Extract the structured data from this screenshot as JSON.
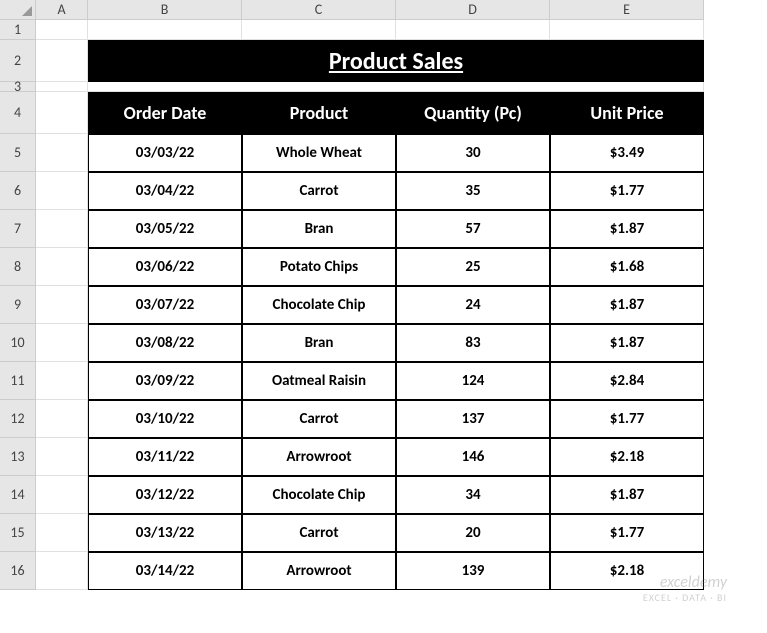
{
  "columns": [
    "A",
    "B",
    "C",
    "D",
    "E"
  ],
  "rows_labels": [
    "1",
    "2",
    "3",
    "4",
    "5",
    "6",
    "7",
    "8",
    "9",
    "10",
    "11",
    "12",
    "13",
    "14",
    "15",
    "16"
  ],
  "title": "Product Sales",
  "headers": {
    "order_date": "Order Date",
    "product": "Product",
    "quantity": "Quantity (Pc)",
    "unit_price": "Unit Price"
  },
  "data": [
    {
      "date": "03/03/22",
      "product": "Whole Wheat",
      "qty": "30",
      "price": "$3.49"
    },
    {
      "date": "03/04/22",
      "product": "Carrot",
      "qty": "35",
      "price": "$1.77"
    },
    {
      "date": "03/05/22",
      "product": "Bran",
      "qty": "57",
      "price": "$1.87"
    },
    {
      "date": "03/06/22",
      "product": "Potato Chips",
      "qty": "25",
      "price": "$1.68"
    },
    {
      "date": "03/07/22",
      "product": "Chocolate Chip",
      "qty": "24",
      "price": "$1.87"
    },
    {
      "date": "03/08/22",
      "product": "Bran",
      "qty": "83",
      "price": "$1.87"
    },
    {
      "date": "03/09/22",
      "product": "Oatmeal Raisin",
      "qty": "124",
      "price": "$2.84"
    },
    {
      "date": "03/10/22",
      "product": "Carrot",
      "qty": "137",
      "price": "$1.77"
    },
    {
      "date": "03/11/22",
      "product": "Arrowroot",
      "qty": "146",
      "price": "$2.18"
    },
    {
      "date": "03/12/22",
      "product": "Chocolate Chip",
      "qty": "34",
      "price": "$1.87"
    },
    {
      "date": "03/13/22",
      "product": "Carrot",
      "qty": "20",
      "price": "$1.77"
    },
    {
      "date": "03/14/22",
      "product": "Arrowroot",
      "qty": "139",
      "price": "$2.18"
    }
  ],
  "watermark": {
    "line1": "exceldemy",
    "line2": "EXCEL · DATA · BI"
  },
  "colors": {
    "header_bg": "#000000",
    "header_fg": "#ffffff",
    "grid_border": "#e0e0e0",
    "table_border": "#000000",
    "rowcol_bg": "#e6e6e6"
  }
}
